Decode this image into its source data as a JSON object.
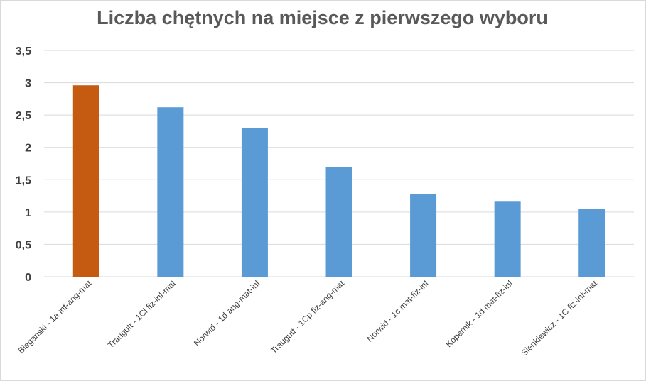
{
  "chart_data": {
    "type": "bar",
    "title": "Liczba chętnych na miejsce z pierwszego wyboru",
    "xlabel": "",
    "ylabel": "",
    "categories": [
      "Bieganski - 1a inf-ang-mat",
      "Traugutt - 1Ci fiz-inf-mat",
      "Norwid - 1d ang-mat-inf",
      "Traugutt - 1Cp fiz-ang-mat",
      "Norwid - 1c mat-fiz-inf",
      "Kopernik - 1d mat-fiz-inf",
      "Sienkiewicz - 1C fiz-inf-mat"
    ],
    "values": [
      2.96,
      2.62,
      2.3,
      1.69,
      1.28,
      1.16,
      1.05
    ],
    "ylim": [
      0,
      3.5
    ],
    "yticks": [
      "0",
      "0,5",
      "1",
      "1,5",
      "2",
      "2,5",
      "3",
      "3,5"
    ],
    "grid": true,
    "legend": "none",
    "colors": {
      "highlight": "#c55a11",
      "default": "#5b9bd5",
      "grid": "#d9d9d9",
      "axis_text": "#404040",
      "title": "#595959"
    },
    "highlight_index": 0
  }
}
